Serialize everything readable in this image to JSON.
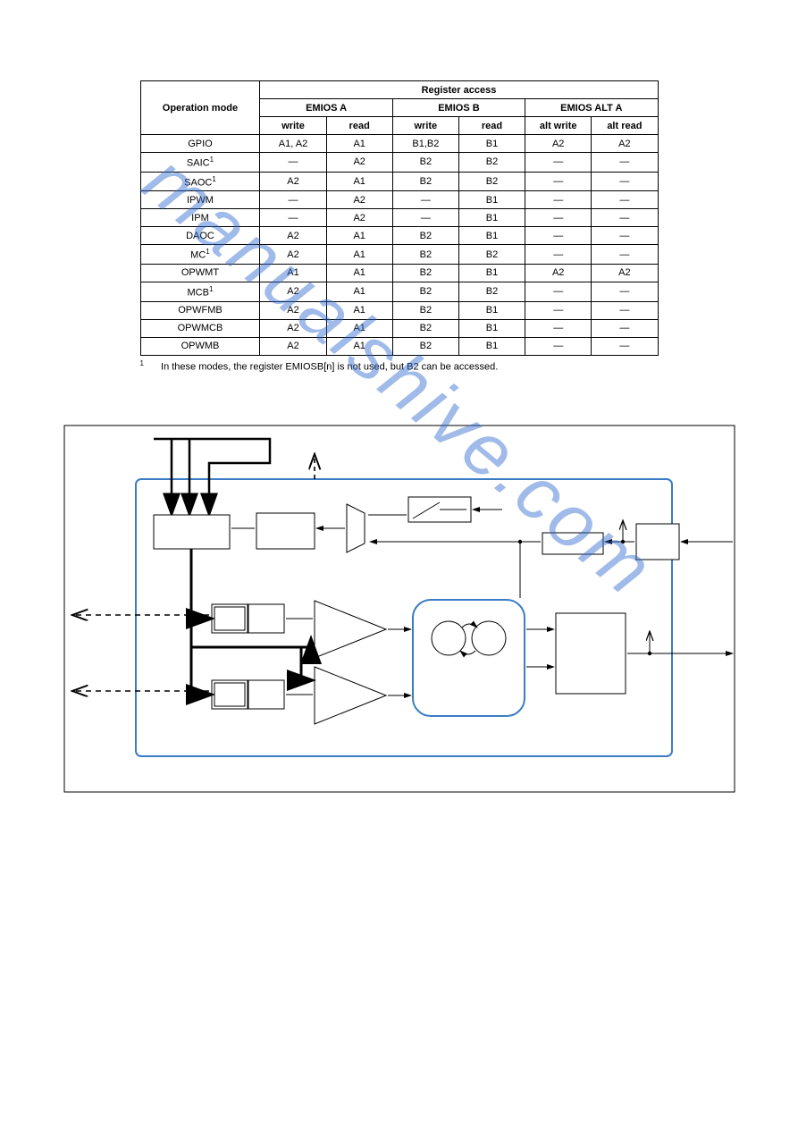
{
  "table": {
    "header_top": "Register access",
    "header_opmode": "Operation mode",
    "groups": [
      {
        "title": "EMIOS A",
        "sub": [
          "write",
          "read"
        ]
      },
      {
        "title": "EMIOS B",
        "sub": [
          "write",
          "read"
        ]
      },
      {
        "title": "EMIOS ALT A",
        "sub": [
          "alt write",
          "alt read"
        ]
      }
    ],
    "rows": [
      {
        "mode": "GPIO",
        "sup": "",
        "cells": [
          "A1, A2",
          "A1",
          "B1,B2",
          "B1",
          "A2",
          "A2"
        ]
      },
      {
        "mode": "SAIC",
        "sup": "1",
        "cells": [
          "—",
          "A2",
          "B2",
          "B2",
          "—",
          "—"
        ]
      },
      {
        "mode": "SAOC",
        "sup": "1",
        "cells": [
          "A2",
          "A1",
          "B2",
          "B2",
          "—",
          "—"
        ]
      },
      {
        "mode": "IPWM",
        "sup": "",
        "cells": [
          "—",
          "A2",
          "—",
          "B1",
          "—",
          "—"
        ]
      },
      {
        "mode": "IPM",
        "sup": "",
        "cells": [
          "—",
          "A2",
          "—",
          "B1",
          "—",
          "—"
        ]
      },
      {
        "mode": "DAOC",
        "sup": "",
        "cells": [
          "A2",
          "A1",
          "B2",
          "B1",
          "—",
          "—"
        ]
      },
      {
        "mode": "MC",
        "sup": "1",
        "cells": [
          "A2",
          "A1",
          "B2",
          "B2",
          "—",
          "—"
        ]
      },
      {
        "mode": "OPWMT",
        "sup": "",
        "cells": [
          "A1",
          "A1",
          "B2",
          "B1",
          "A2",
          "A2"
        ]
      },
      {
        "mode": "MCB",
        "sup": "1",
        "cells": [
          "A2",
          "A1",
          "B2",
          "B2",
          "—",
          "—"
        ]
      },
      {
        "mode": "OPWFMB",
        "sup": "",
        "cells": [
          "A2",
          "A1",
          "B2",
          "B1",
          "—",
          "—"
        ]
      },
      {
        "mode": "OPWMCB",
        "sup": "",
        "cells": [
          "A2",
          "A1",
          "B2",
          "B1",
          "—",
          "—"
        ]
      },
      {
        "mode": "OPWMB",
        "sup": "",
        "cells": [
          "A2",
          "A1",
          "B2",
          "B1",
          "—",
          "—"
        ]
      }
    ],
    "footnote_num": "1",
    "footnote_text": "In these modes, the register EMIOSB[n] is not used, but B2 can be accessed."
  },
  "diagram": {
    "outer_w": 770,
    "outer_h": 440,
    "outer_stroke": "#000000",
    "inner_stroke": "#3a7dc5",
    "inner_fill": "#ffffff",
    "bg": "#ffffff",
    "line_color": "#000000"
  },
  "watermark_text": "manualshive.com"
}
